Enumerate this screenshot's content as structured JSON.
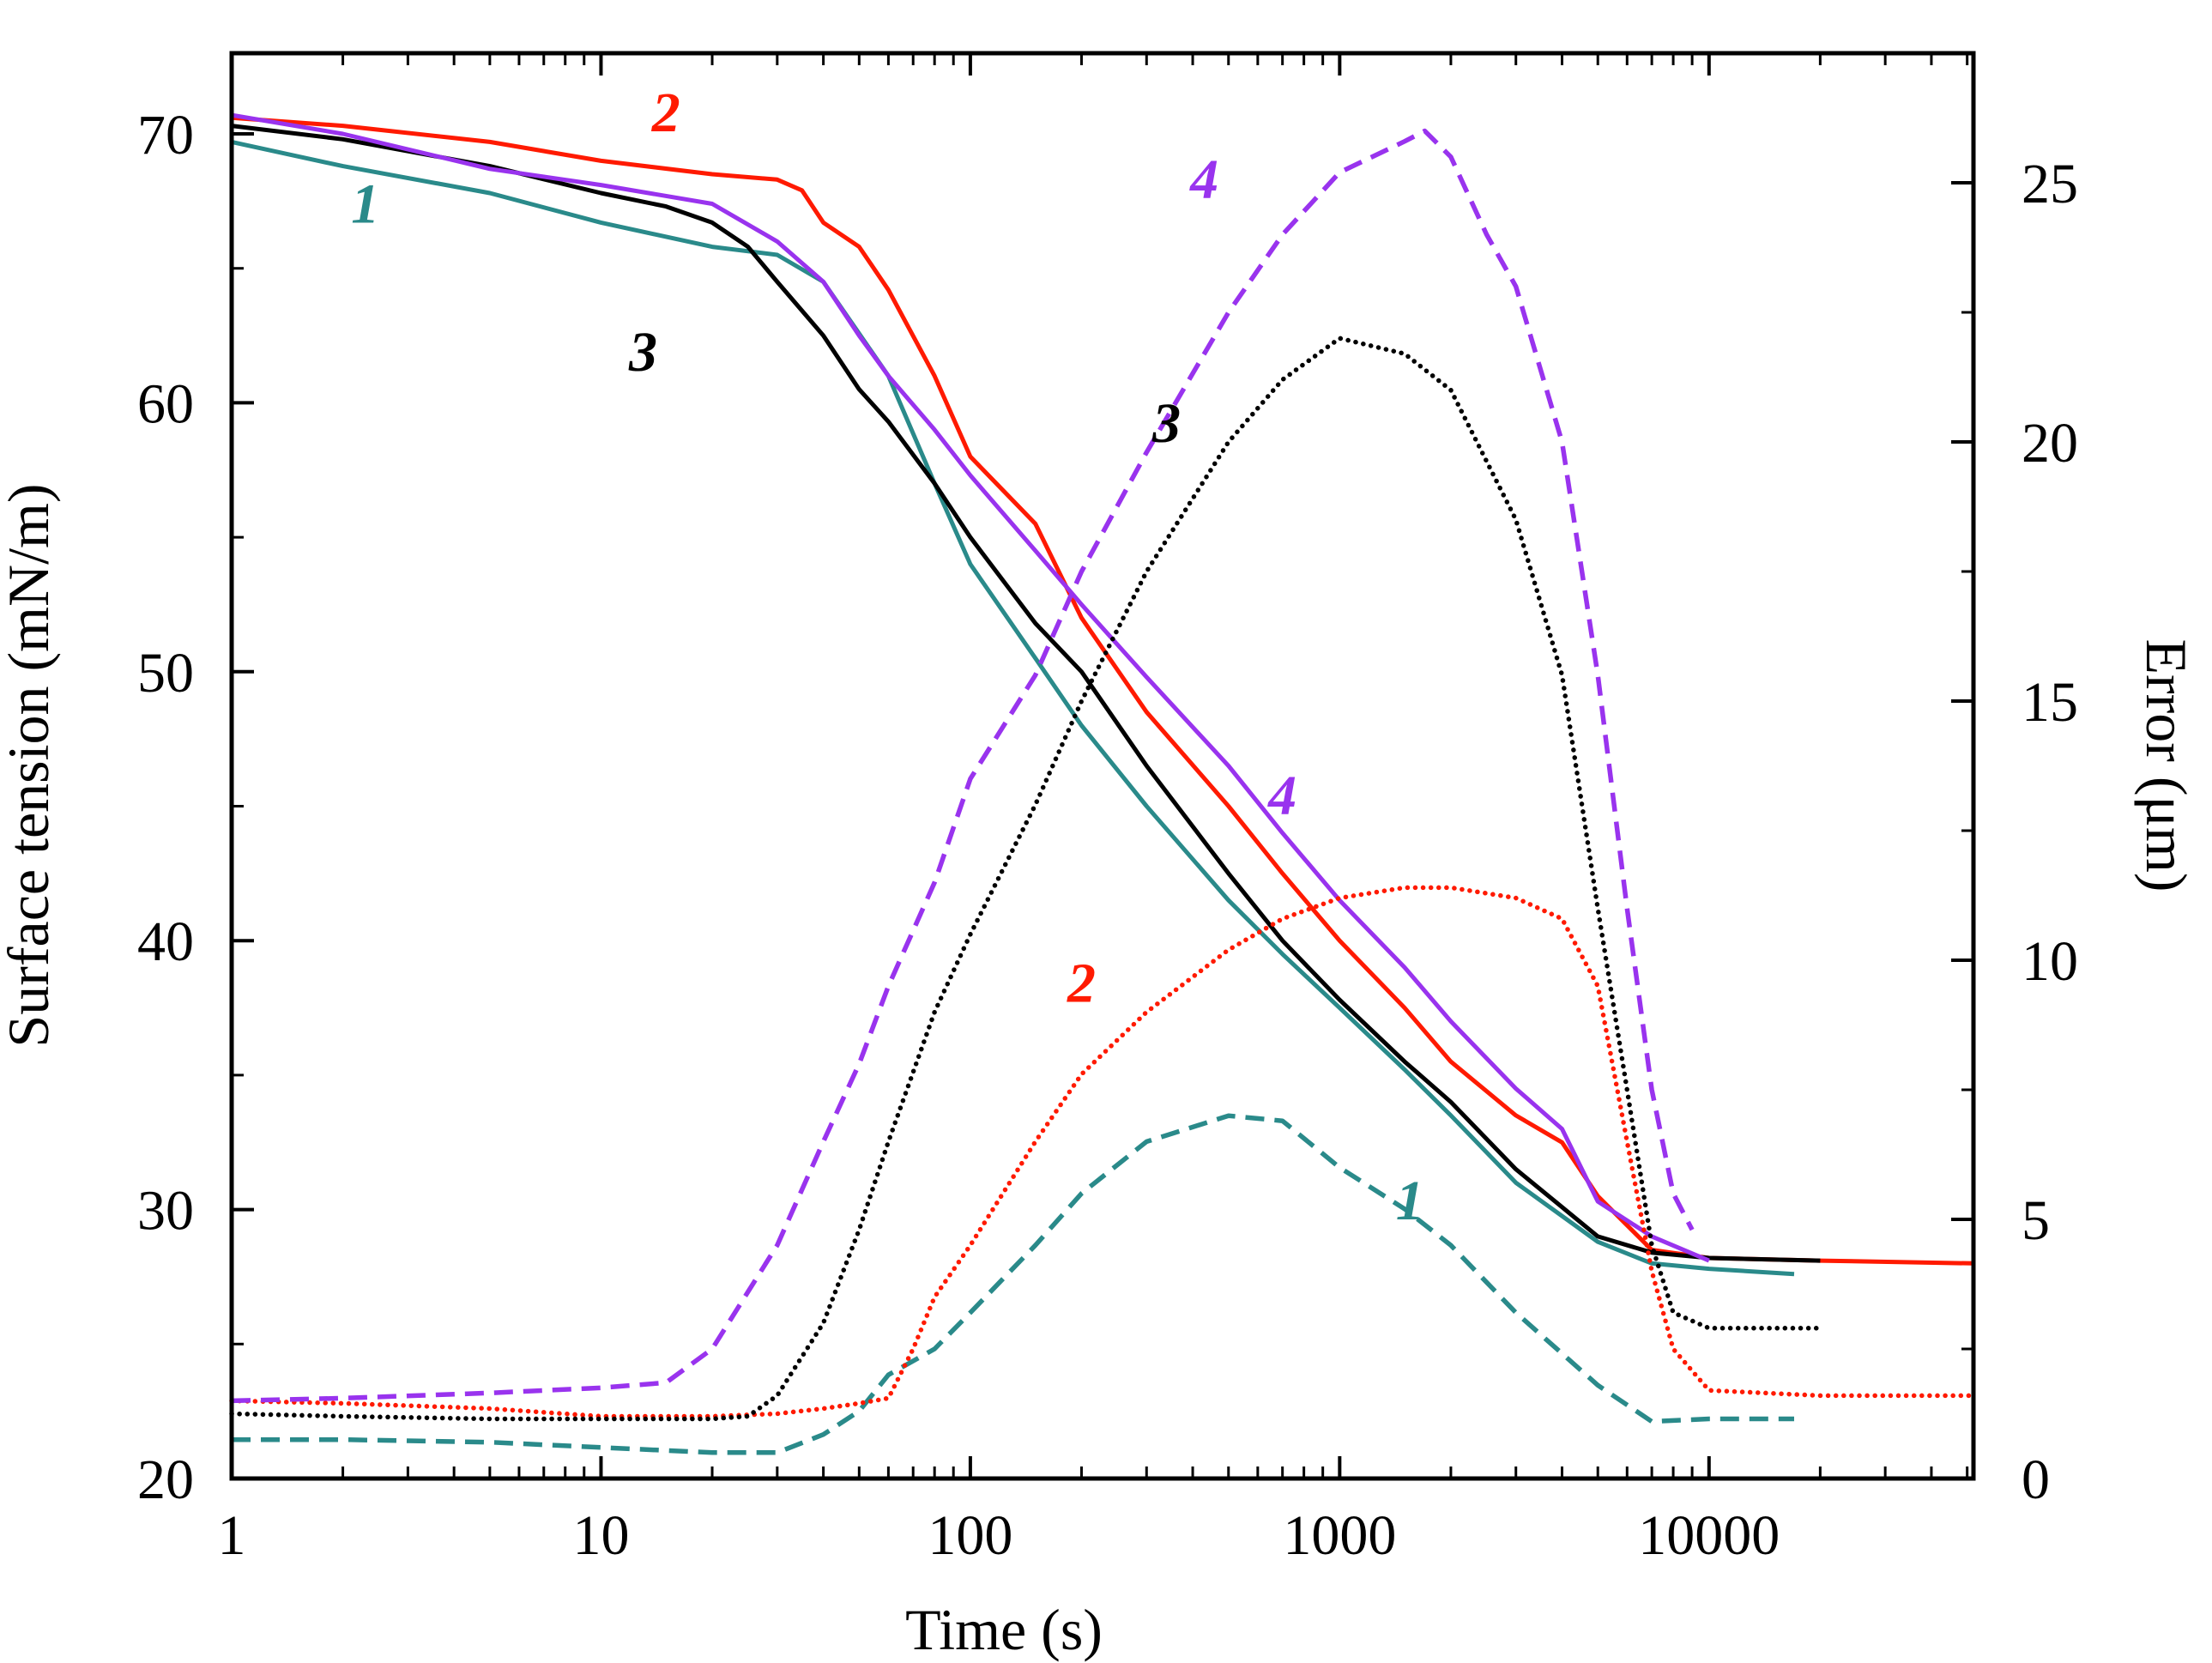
{
  "chart_data": {
    "type": "line",
    "xscale": "log",
    "xlabel": "Time (s)",
    "ylabel": "Surface tension (mN/m)",
    "y2label": "Error (μm)",
    "xlim": [
      1,
      52000
    ],
    "ylim": [
      20,
      73
    ],
    "y2lim": [
      0,
      27.5
    ],
    "x_ticks": [
      1,
      10,
      100,
      1000,
      10000
    ],
    "x_tick_labels": [
      "1",
      "10",
      "100",
      "1000",
      "10000"
    ],
    "y_ticks": [
      20,
      30,
      40,
      50,
      60,
      70
    ],
    "y_tick_labels": [
      "20",
      "30",
      "40",
      "50",
      "60",
      "70"
    ],
    "y2_ticks": [
      0,
      5,
      10,
      15,
      20,
      25
    ],
    "y2_tick_labels": [
      "0",
      "5",
      "10",
      "15",
      "20",
      "25"
    ],
    "series": [
      {
        "name": "1",
        "axis": "left",
        "style": "solid",
        "color": "#2a8a8a",
        "x": [
          1,
          2,
          5,
          10,
          20,
          30,
          40,
          60,
          80,
          100,
          150,
          200,
          300,
          500,
          700,
          1000,
          1500,
          2000,
          3000,
          5000,
          7000,
          10000,
          17000
        ],
        "y": [
          69.7,
          68.8,
          67.8,
          66.7,
          65.8,
          65.5,
          64.5,
          61.0,
          57.0,
          54.0,
          50.5,
          48.0,
          45.0,
          41.5,
          39.5,
          37.5,
          35.2,
          33.5,
          31.0,
          28.8,
          28.0,
          27.8,
          27.6
        ]
      },
      {
        "name": "2",
        "axis": "left",
        "style": "solid",
        "color": "#ff1a00",
        "x": [
          1,
          2,
          5,
          10,
          20,
          30,
          35,
          40,
          50,
          60,
          80,
          100,
          150,
          200,
          300,
          500,
          700,
          1000,
          1500,
          2000,
          3000,
          4000,
          5000,
          7000,
          10000,
          20000,
          52000
        ],
        "y": [
          70.6,
          70.3,
          69.7,
          69.0,
          68.5,
          68.3,
          67.9,
          66.7,
          65.8,
          64.2,
          61.0,
          58.0,
          55.5,
          52.0,
          48.5,
          45.0,
          42.5,
          40.0,
          37.5,
          35.5,
          33.5,
          32.5,
          30.5,
          28.5,
          28.2,
          28.1,
          28.0
        ]
      },
      {
        "name": "3",
        "axis": "left",
        "style": "solid",
        "color": "#000000",
        "x": [
          1,
          2,
          5,
          10,
          15,
          20,
          25,
          30,
          40,
          50,
          60,
          80,
          100,
          150,
          200,
          300,
          500,
          700,
          1000,
          1500,
          2000,
          3000,
          5000,
          7000,
          10000,
          20000
        ],
        "y": [
          70.3,
          69.8,
          68.8,
          67.8,
          67.3,
          66.7,
          65.8,
          64.5,
          62.5,
          60.5,
          59.3,
          57.0,
          55.0,
          51.8,
          50.0,
          46.5,
          42.5,
          40.0,
          37.8,
          35.5,
          34.0,
          31.5,
          29.0,
          28.4,
          28.2,
          28.1
        ]
      },
      {
        "name": "4",
        "axis": "left",
        "style": "solid",
        "color": "#9933ee",
        "x": [
          1,
          2,
          5,
          10,
          20,
          30,
          40,
          50,
          60,
          80,
          100,
          150,
          200,
          300,
          500,
          700,
          1000,
          1500,
          2000,
          3000,
          4000,
          5000,
          7000,
          10000
        ],
        "y": [
          70.7,
          70.0,
          68.7,
          68.1,
          67.4,
          66.0,
          64.5,
          62.5,
          61.0,
          59.0,
          57.3,
          54.5,
          52.5,
          49.8,
          46.5,
          44.0,
          41.5,
          39.0,
          37.0,
          34.5,
          33.0,
          30.3,
          29.0,
          28.1
        ]
      },
      {
        "name": "1",
        "axis": "right",
        "style": "dashed",
        "color": "#2a8a8a",
        "x": [
          1,
          2,
          5,
          10,
          20,
          30,
          40,
          50,
          60,
          80,
          100,
          150,
          200,
          300,
          500,
          700,
          1000,
          1500,
          2000,
          3000,
          5000,
          7000,
          10000,
          17000
        ],
        "y": [
          0.75,
          0.75,
          0.7,
          0.6,
          0.5,
          0.5,
          0.85,
          1.3,
          2.0,
          2.5,
          3.2,
          4.5,
          5.5,
          6.5,
          7.0,
          6.9,
          6.0,
          5.2,
          4.5,
          3.2,
          1.8,
          1.1,
          1.15,
          1.15
        ]
      },
      {
        "name": "2",
        "axis": "right",
        "style": "dotted",
        "color": "#ff1a00",
        "x": [
          1,
          2,
          5,
          10,
          20,
          30,
          40,
          50,
          60,
          70,
          80,
          100,
          150,
          200,
          300,
          500,
          700,
          1000,
          1500,
          2000,
          3000,
          4000,
          5000,
          6000,
          7000,
          8000,
          10000,
          20000,
          52000
        ],
        "y": [
          1.5,
          1.45,
          1.35,
          1.2,
          1.2,
          1.25,
          1.35,
          1.45,
          1.55,
          2.5,
          3.5,
          4.5,
          6.5,
          7.8,
          9.0,
          10.2,
          10.8,
          11.2,
          11.4,
          11.4,
          11.2,
          10.8,
          9.5,
          6.5,
          4.0,
          2.5,
          1.7,
          1.6,
          1.6
        ]
      },
      {
        "name": "3",
        "axis": "right",
        "style": "dotted",
        "color": "#000000",
        "x": [
          1,
          2,
          5,
          10,
          20,
          25,
          30,
          40,
          50,
          60,
          80,
          100,
          150,
          200,
          300,
          500,
          700,
          1000,
          1500,
          2000,
          3000,
          4000,
          5000,
          6000,
          7000,
          8000,
          10000,
          20000
        ],
        "y": [
          1.25,
          1.2,
          1.15,
          1.15,
          1.15,
          1.2,
          1.6,
          3.0,
          4.8,
          6.5,
          9.0,
          10.5,
          13.0,
          15.0,
          17.5,
          20.0,
          21.2,
          22.0,
          21.7,
          21.0,
          18.5,
          15.5,
          11.0,
          7.5,
          4.5,
          3.2,
          2.9,
          2.9
        ]
      },
      {
        "name": "4",
        "axis": "right",
        "style": "dashed",
        "color": "#9933ee",
        "x": [
          1,
          2,
          5,
          10,
          15,
          20,
          30,
          40,
          50,
          60,
          80,
          100,
          150,
          200,
          300,
          500,
          700,
          1000,
          1500,
          1700,
          2000,
          2500,
          3000,
          4000,
          5000,
          6000,
          7000,
          8000,
          9000
        ],
        "y": [
          1.5,
          1.55,
          1.65,
          1.75,
          1.85,
          2.5,
          4.5,
          6.5,
          8.0,
          9.5,
          11.5,
          13.5,
          15.5,
          17.5,
          19.8,
          22.5,
          24.0,
          25.2,
          25.8,
          26.0,
          25.5,
          24.0,
          23.0,
          20.0,
          15.5,
          11.0,
          7.5,
          5.5,
          4.8
        ]
      }
    ],
    "annotations": [
      {
        "text": "1",
        "x": 2.3,
        "y": 66.7,
        "axis": "left",
        "color": "#2a8a8a"
      },
      {
        "text": "2",
        "x": 15,
        "y": 70.1,
        "axis": "left",
        "color": "#ff1a00"
      },
      {
        "text": "3",
        "x": 13,
        "y": 61.2,
        "axis": "left",
        "color": "#000000"
      },
      {
        "text": "4",
        "x": 700,
        "y": 44.7,
        "axis": "left",
        "color": "#9933ee"
      },
      {
        "text": "1",
        "x": 1550,
        "y": 5.0,
        "axis": "right",
        "color": "#2a8a8a"
      },
      {
        "text": "2",
        "x": 200,
        "y": 9.2,
        "axis": "right",
        "color": "#ff1a00"
      },
      {
        "text": "3",
        "x": 340,
        "y": 20.0,
        "axis": "right",
        "color": "#000000"
      },
      {
        "text": "4",
        "x": 430,
        "y": 24.7,
        "axis": "right",
        "color": "#9933ee"
      }
    ]
  }
}
